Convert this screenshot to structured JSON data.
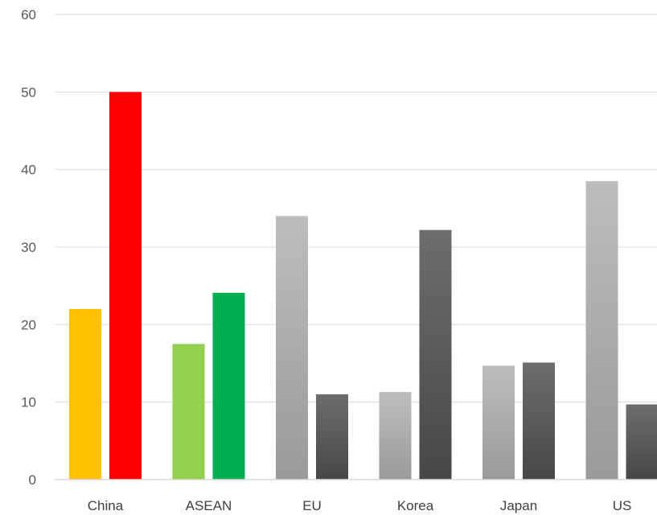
{
  "chart_data": {
    "type": "bar",
    "categories": [
      "China",
      "ASEAN",
      "EU",
      "Korea",
      "Japan",
      "US"
    ],
    "series": [
      {
        "values": [
          22.0,
          17.5,
          34.0,
          11.3,
          14.7,
          38.5
        ]
      },
      {
        "values": [
          50.0,
          24.1,
          11.0,
          32.2,
          15.1,
          9.7
        ]
      }
    ],
    "bar_colors": [
      [
        "#FFC000",
        "#FF0000"
      ],
      [
        "#92D050",
        "#00B050"
      ],
      [
        "gray-light",
        "gray-dark"
      ],
      [
        "gray-light",
        "gray-dark"
      ],
      [
        "gray-light",
        "gray-dark"
      ],
      [
        "gray-light",
        "gray-dark"
      ]
    ],
    "ylim": [
      0,
      60
    ],
    "yticks": [
      "0",
      "10",
      "20",
      "30",
      "40",
      "50",
      "60"
    ],
    "grid": true,
    "legend": "none"
  }
}
